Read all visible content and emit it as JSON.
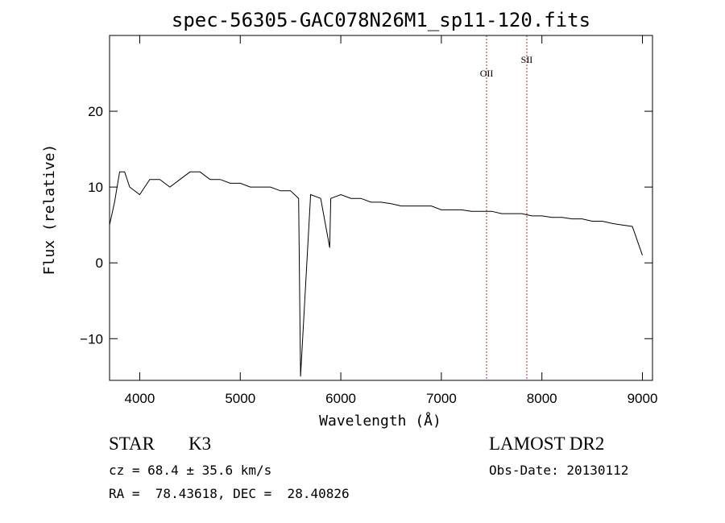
{
  "chart_data": {
    "type": "line",
    "title": "spec-56305-GAC078N26M1_sp11-120.fits",
    "xlabel": "Wavelength (Å)",
    "ylabel": "Flux (relative)",
    "xlim": [
      3700,
      9100
    ],
    "ylim": [
      -15.5,
      30
    ],
    "xticks": [
      4000,
      5000,
      6000,
      7000,
      8000,
      9000
    ],
    "yticks": [
      -10,
      0,
      10,
      20
    ],
    "grid": false,
    "series": [
      {
        "x": [
          3700,
          3750,
          3800,
          3850,
          3900,
          4000,
          4100,
          4200,
          4300,
          4400,
          4500,
          4600,
          4700,
          4800,
          4900,
          5000,
          5100,
          5200,
          5300,
          5400,
          5500,
          5580,
          5600,
          5700,
          5800,
          5890,
          5900,
          6000,
          6100,
          6200,
          6300,
          6400,
          6500,
          6600,
          6700,
          6800,
          6900,
          7000,
          7100,
          7200,
          7300,
          7400,
          7500,
          7600,
          7700,
          7800,
          7900,
          8000,
          8100,
          8200,
          8300,
          8400,
          8500,
          8600,
          8700,
          8800,
          8900,
          9000
        ],
        "values": [
          5,
          8,
          12,
          12,
          10,
          9,
          11,
          11,
          10,
          11,
          12,
          12,
          11,
          11,
          10.5,
          10.5,
          10,
          10,
          10,
          9.5,
          9.5,
          8.5,
          -15,
          9,
          8.5,
          2,
          8.5,
          9,
          8.5,
          8.5,
          8,
          8,
          7.8,
          7.5,
          7.5,
          7.5,
          7.5,
          7,
          7,
          7,
          6.8,
          6.8,
          6.8,
          6.5,
          6.5,
          6.5,
          6.2,
          6.2,
          6,
          6,
          5.8,
          5.8,
          5.5,
          5.5,
          5.2,
          5,
          4.8,
          1
        ]
      }
    ],
    "emission_lines": [
      {
        "label": "OII",
        "x": 7450
      },
      {
        "label": "SII",
        "x": 7850
      }
    ]
  },
  "footer": {
    "class_label": "STAR",
    "subclass_label": "K3",
    "cz_line": "cz = 68.4 ± 35.6 km/s",
    "coords_line": "RA =  78.43618, DEC =  28.40826",
    "survey": "LAMOST DR2",
    "obs_date": "Obs-Date: 20130112"
  }
}
